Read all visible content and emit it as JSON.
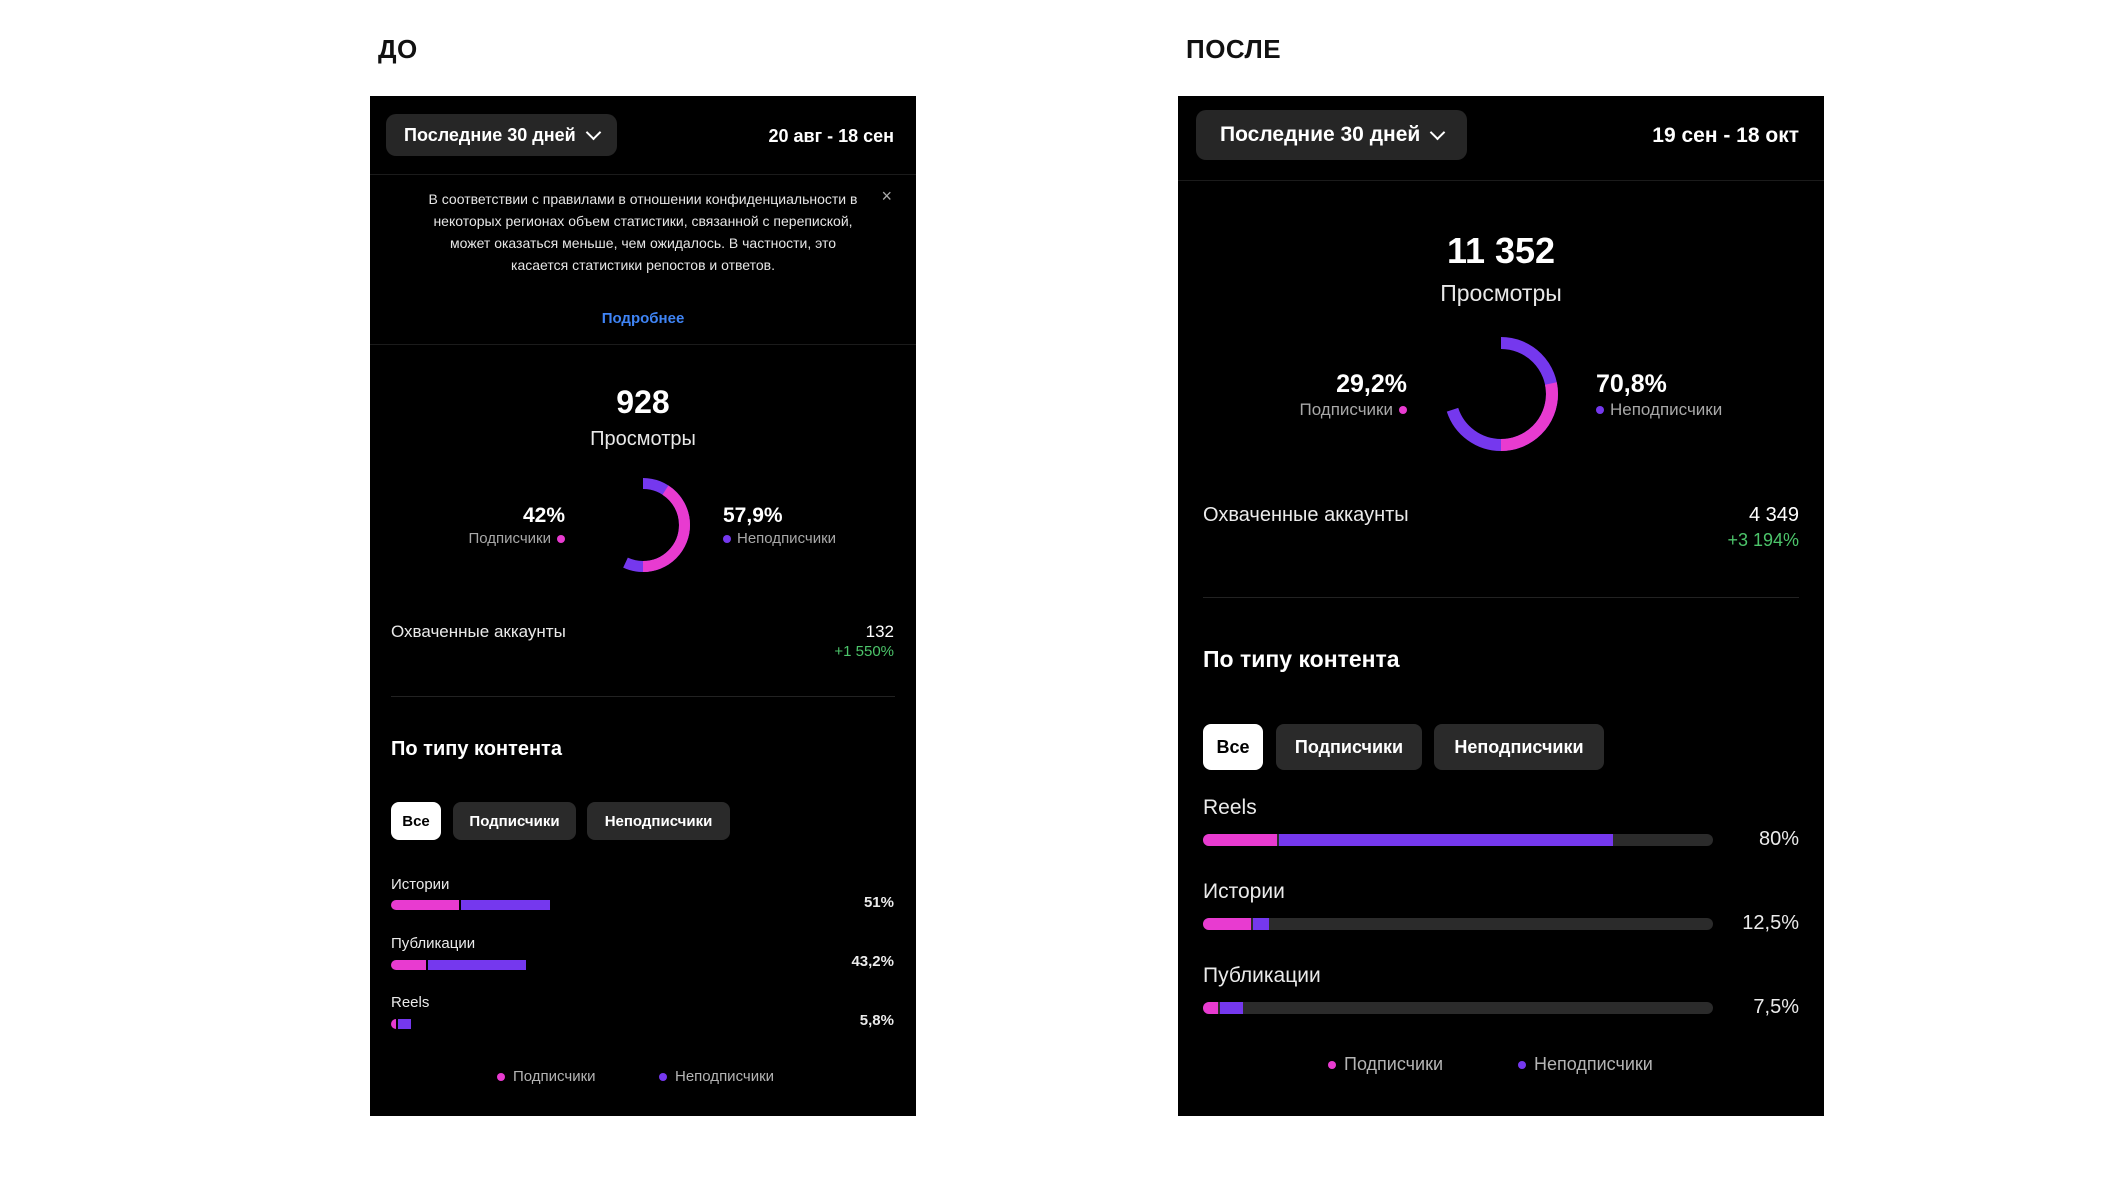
{
  "colors": {
    "subscribers": "#e83bd0",
    "non_subscribers": "#7538ee",
    "positive": "#4cc46a",
    "link": "#3f84f5"
  },
  "before": {
    "label": "ДО",
    "range_button": "Последние 30 дней",
    "dates": "20 авг - 18 сен",
    "notice": {
      "text": "В соответствии с правилами в отношении конфиденциальности в некоторых регионах объем статистики, связанной с перепиской, может оказаться меньше, чем ожидалось. В частности, это касается статистики репостов и ответов.",
      "close": "×",
      "link": "Подробнее"
    },
    "views_value": "928",
    "views_label": "Просмотры",
    "subscribers_pct": "42%",
    "subscribers_label": "Подписчики",
    "non_subscribers_pct": "57,9%",
    "non_subscribers_label": "Неподписчики",
    "subscribers_fraction": 0.42,
    "reach_label": "Охваченные аккаунты",
    "reach_value": "132",
    "reach_delta": "+1 550%",
    "content_title": "По типу контента",
    "filters": [
      "Все",
      "Подписчики",
      "Неподписчики"
    ],
    "rows": [
      {
        "label": "Истории",
        "pct": "51%",
        "total": 51,
        "subs": 22
      },
      {
        "label": "Публикации",
        "pct": "43,2%",
        "total": 43.2,
        "subs": 11.5
      },
      {
        "label": "Reels",
        "pct": "5,8%",
        "total": 5.8,
        "subs": 1.6
      }
    ],
    "legend_subscribers": "Подписчики",
    "legend_non_subscribers": "Неподписчики"
  },
  "after": {
    "label": "ПОСЛЕ",
    "range_button": "Последние 30 дней",
    "dates": "19 сен - 18 окт",
    "views_value": "11 352",
    "views_label": "Просмотры",
    "subscribers_pct": "29,2%",
    "subscribers_label": "Подписчики",
    "non_subscribers_pct": "70,8%",
    "non_subscribers_label": "Неподписчики",
    "subscribers_fraction": 0.292,
    "reach_label": "Охваченные аккаунты",
    "reach_value": "4 349",
    "reach_delta": "+3 194%",
    "content_title": "По типу контента",
    "filters": [
      "Все",
      "Подписчики",
      "Неподписчики"
    ],
    "rows": [
      {
        "label": "Reels",
        "pct": "80%",
        "total": 80,
        "subs": 14.5
      },
      {
        "label": "Истории",
        "pct": "12,5%",
        "total": 12.5,
        "subs": 9.5
      },
      {
        "label": "Публикации",
        "pct": "7,5%",
        "total": 7.5,
        "subs": 3
      }
    ],
    "legend_subscribers": "Подписчики",
    "legend_non_subscribers": "Неподписчики"
  }
}
